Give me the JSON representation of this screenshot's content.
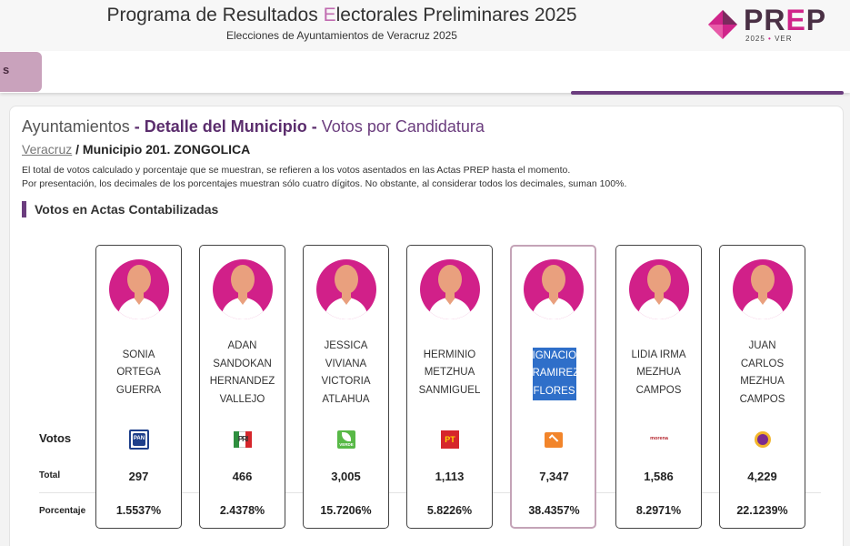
{
  "header": {
    "title_part1": "Programa de Resultados ",
    "title_hl": "E",
    "title_part2": "lectorales Preliminares 2025",
    "subtitle": "Elecciones de Ayuntamientos de Veracruz 2025",
    "logo_p": "PR",
    "logo_e": "E",
    "logo_p2": "P",
    "logo_year": "2025",
    "logo_dot": "•",
    "logo_state": "VER"
  },
  "nav": {
    "tab_label": "s"
  },
  "page": {
    "title_prefix": "Ayuntamientos",
    "title_sep1": " - ",
    "title_main": "Detalle del Municipio",
    "title_sep2": " - ",
    "title_tail": "Votos por Candidatura",
    "breadcrumb_link": "Veracruz",
    "breadcrumb_sep": " / ",
    "breadcrumb_current": "Municipio 201. ZONGOLICA",
    "note1": "El total de votos calculado y porcentaje que se muestran, se refieren a los votos asentados en las Actas PREP hasta el momento.",
    "note2": "Por presentación, los decimales de los porcentajes muestran sólo cuatro dígitos. No obstante, al considerar todos los decimales, suman 100%.",
    "section_title": "Votos en Actas Contabilizadas"
  },
  "rows": {
    "votos": "Votos",
    "total": "Total",
    "porcentaje": "Porcentaje"
  },
  "candidates": [
    {
      "name": "SONIA ORTEGA GUERRA",
      "party": "PAN",
      "total": "297",
      "pct": "1.5537%"
    },
    {
      "name": "ADAN SANDOKAN HERNANDEZ VALLEJO",
      "party": "PRI",
      "total": "466",
      "pct": "2.4378%"
    },
    {
      "name": "JESSICA VIVIANA VICTORIA ATLAHUA",
      "party": "VERDE",
      "total": "3,005",
      "pct": "15.7206%"
    },
    {
      "name": "HERMINIO METZHUA SANMIGUEL",
      "party": "PT",
      "total": "1,113",
      "pct": "5.8226%"
    },
    {
      "name": "IGNACIO RAMIREZ FLORES",
      "party": "MC",
      "total": "7,347",
      "pct": "38.4357%"
    },
    {
      "name": "LIDIA IRMA MEZHUA CAMPOS",
      "party": "morena",
      "total": "1,586",
      "pct": "8.2971%"
    },
    {
      "name": "JUAN CARLOS MEZHUA CAMPOS",
      "party": "",
      "total": "4,229",
      "pct": "22.1239%"
    }
  ],
  "colors": {
    "accent": "#6b3d7e",
    "avatar_bg": "#d12089",
    "selection": "#2f6fc9"
  },
  "icons": [
    "prep-logo-icon",
    "pan-logo-icon",
    "pri-logo-icon",
    "verde-logo-icon",
    "pt-logo-icon",
    "mc-logo-icon",
    "morena-logo-icon",
    "party-logo-icon",
    "avatar-icon"
  ]
}
